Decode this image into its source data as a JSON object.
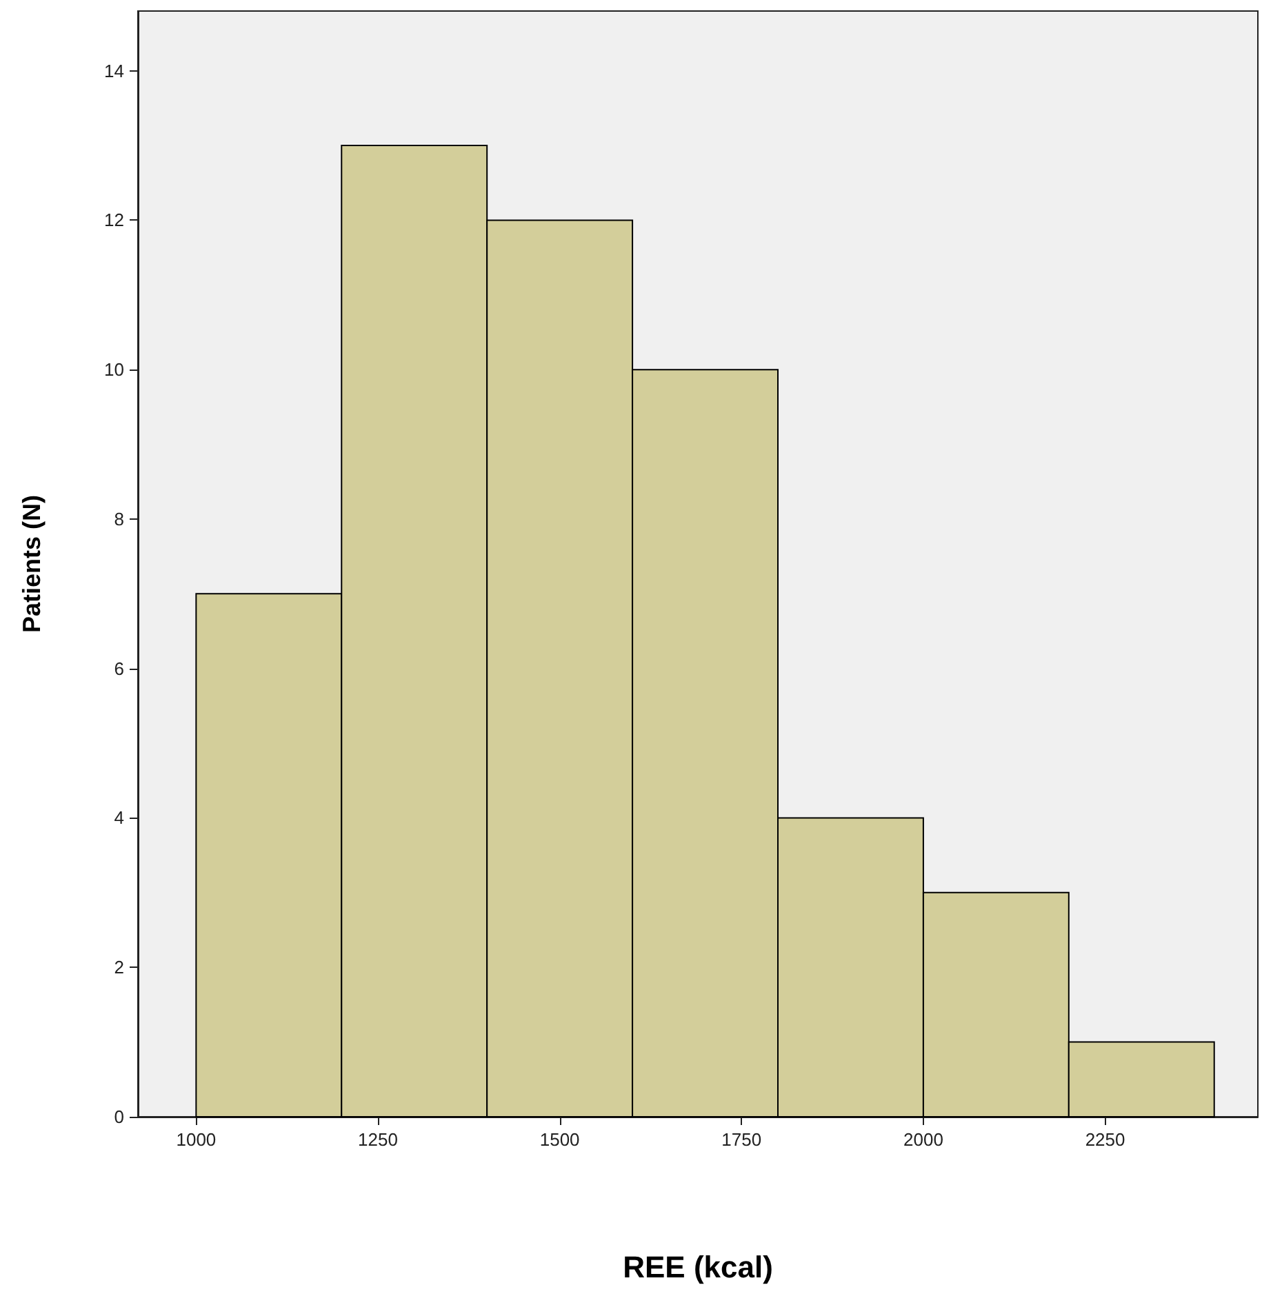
{
  "chart_data": {
    "type": "histogram",
    "xlabel": "REE (kcal)",
    "ylabel": "Patients (N)",
    "bins": [
      1000,
      1200,
      1400,
      1600,
      1800,
      2000,
      2200,
      2400
    ],
    "values": [
      7,
      13,
      12,
      10,
      4,
      3,
      1
    ],
    "color": "#d3ce9a",
    "xlim": [
      920,
      2460
    ],
    "xticks": [
      1000,
      1250,
      1500,
      1750,
      2000,
      2250
    ],
    "ylim": [
      0,
      14.8
    ],
    "yticks": [
      0,
      2,
      4,
      6,
      8,
      10,
      12,
      14
    ],
    "grid": false
  }
}
